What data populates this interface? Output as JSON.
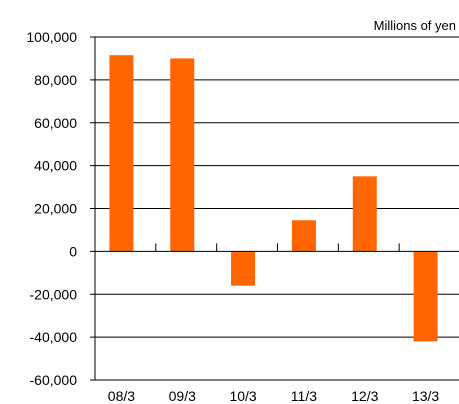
{
  "chart_data": {
    "type": "bar",
    "title": "",
    "unit_label": "Millions of yen",
    "xlabel": "",
    "ylabel": "",
    "categories": [
      "08/3",
      "09/3",
      "10/3",
      "11/3",
      "12/3",
      "13/3"
    ],
    "values": [
      91500,
      90000,
      -16000,
      14500,
      35000,
      -42000
    ],
    "y_ticks": [
      100000,
      80000,
      60000,
      40000,
      20000,
      0,
      -20000,
      -40000,
      -60000
    ],
    "y_tick_labels": [
      "100,000",
      "80,000",
      "60,000",
      "40,000",
      "20,000",
      "0",
      "-20,000",
      "-40,000",
      "-60,000"
    ],
    "ylim": [
      -60000,
      100000
    ],
    "grid": true,
    "legend": "none",
    "bar_color": "#ff6600",
    "grid_color": "#000000"
  }
}
